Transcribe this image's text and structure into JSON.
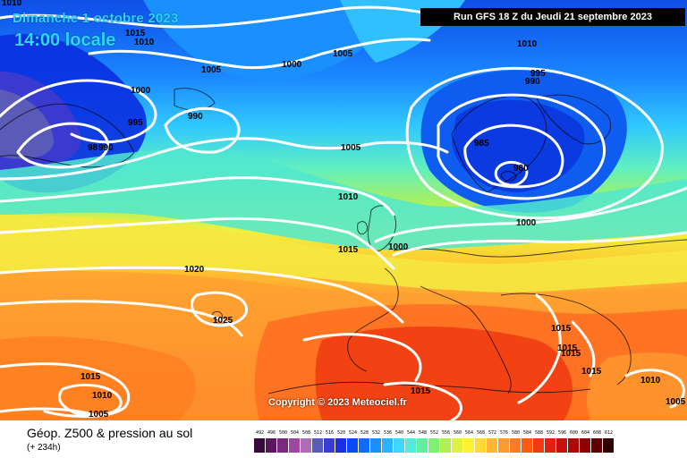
{
  "header": {
    "date": "Dimanche 1 octobre 2023",
    "time": "14:00 locale",
    "run": "Run GFS 18 Z du Jeudi 21 septembre 2023"
  },
  "footer": {
    "title": "Géop. Z500 & pression au sol",
    "lead": "(+ 234h)"
  },
  "copyright": "Copyright © 2023 Meteociel.fr",
  "isobars": [
    "1010",
    "1015",
    "1010",
    "1005",
    "1000",
    "1000",
    "995",
    "990",
    "98",
    "990",
    "1005",
    "1010",
    "995",
    "990",
    "985",
    "980",
    "1005",
    "1010",
    "1015",
    "1000",
    "1000",
    "1020",
    "1025",
    "1015",
    "1015",
    "1015",
    "1015",
    "1010",
    "1005",
    "1015",
    "1015",
    "1010",
    "1005"
  ],
  "legend": {
    "values": [
      "492",
      "496",
      "500",
      "504",
      "508",
      "512",
      "516",
      "520",
      "524",
      "528",
      "532",
      "536",
      "540",
      "544",
      "548",
      "552",
      "556",
      "560",
      "564",
      "568",
      "572",
      "576",
      "580",
      "584",
      "588",
      "592",
      "596",
      "600",
      "604",
      "608",
      "612"
    ],
    "colors": [
      "#3a0a3e",
      "#5c1560",
      "#7a2a7e",
      "#9b4aa0",
      "#b06ab8",
      "#5a5ab8",
      "#3a3ad8",
      "#1a2ee8",
      "#0a4af0",
      "#0f6cf8",
      "#1a90ff",
      "#2ab4ff",
      "#3ad8ff",
      "#50ecd8",
      "#5ef0a0",
      "#80f070",
      "#b0f050",
      "#e0f040",
      "#fff030",
      "#ffd830",
      "#ffb830",
      "#ff9a30",
      "#ff7a20",
      "#ff5a10",
      "#f03a10",
      "#e02010",
      "#c81010",
      "#b00808",
      "#900000",
      "#600000",
      "#300000"
    ]
  }
}
